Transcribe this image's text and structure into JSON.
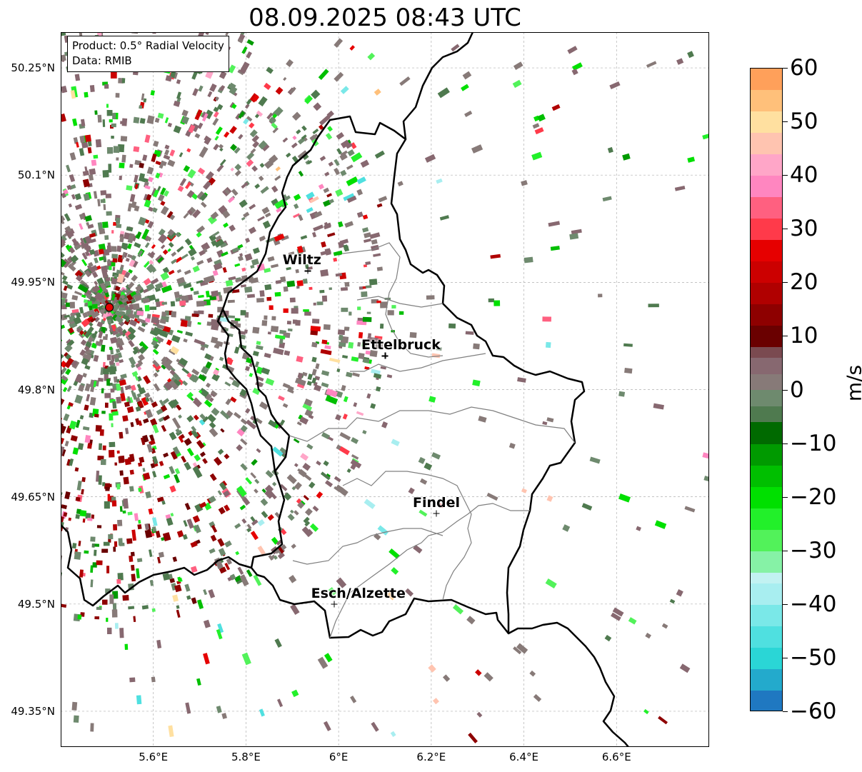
{
  "title": "08.09.2025 08:43 UTC",
  "info": {
    "product": "Product: 0.5° Radial Velocity",
    "data": "Data: RMIB"
  },
  "axes": {
    "lat_labels": [
      "50.25°N",
      "50.1°N",
      "49.95°N",
      "49.8°N",
      "49.65°N",
      "49.5°N",
      "49.35°N"
    ],
    "lat_values": [
      50.25,
      50.1,
      49.95,
      49.8,
      49.65,
      49.5,
      49.35
    ],
    "lon_labels": [
      "5.6°E",
      "5.8°E",
      "6°E",
      "6.2°E",
      "6.4°E",
      "6.6°E"
    ],
    "lon_values": [
      5.6,
      5.8,
      6.0,
      6.2,
      6.4,
      6.6
    ],
    "lat_range": [
      49.3,
      50.3
    ],
    "lon_range": [
      5.4,
      6.8
    ]
  },
  "cities": [
    {
      "name": "Wiltz",
      "lat": 49.966,
      "lon": 5.933
    },
    {
      "name": "Ettelbruck",
      "lat": 49.847,
      "lon": 6.1
    },
    {
      "name": "Findel",
      "lat": 49.627,
      "lon": 6.211
    },
    {
      "name": "Esch/Alzette",
      "lat": 49.5,
      "lon": 5.99
    }
  ],
  "radar_site": {
    "lat": 49.915,
    "lon": 5.505,
    "color": "#e60000"
  },
  "colorbar": {
    "unit": "m/s",
    "range": [
      -60,
      60
    ],
    "tick_labels": [
      "60",
      "50",
      "40",
      "30",
      "20",
      "10",
      "0",
      "−10",
      "−20",
      "−30",
      "−40",
      "−50",
      "−60"
    ],
    "tick_values": [
      60,
      50,
      40,
      30,
      20,
      10,
      0,
      -10,
      -20,
      -30,
      -40,
      -50,
      -60
    ],
    "stops": [
      {
        "from": -60,
        "to": -56,
        "color": "#1f78c1"
      },
      {
        "from": -56,
        "to": -52,
        "color": "#23aacc"
      },
      {
        "from": -52,
        "to": -48,
        "color": "#2ad6d6"
      },
      {
        "from": -48,
        "to": -44,
        "color": "#4fe0e0"
      },
      {
        "from": -44,
        "to": -40,
        "color": "#7ae8e8"
      },
      {
        "from": -40,
        "to": -36,
        "color": "#a8eef0"
      },
      {
        "from": -36,
        "to": -34,
        "color": "#c2f2f2"
      },
      {
        "from": -34,
        "to": -30,
        "color": "#86f2a6"
      },
      {
        "from": -30,
        "to": -26,
        "color": "#52f25a"
      },
      {
        "from": -26,
        "to": -22,
        "color": "#22f02a"
      },
      {
        "from": -22,
        "to": -18,
        "color": "#00e000"
      },
      {
        "from": -18,
        "to": -14,
        "color": "#00bf00"
      },
      {
        "from": -14,
        "to": -10,
        "color": "#009a00"
      },
      {
        "from": -10,
        "to": -6,
        "color": "#006a00"
      },
      {
        "from": -6,
        "to": -3,
        "color": "#4f7a4f"
      },
      {
        "from": -3,
        "to": 0,
        "color": "#6e8a6e"
      },
      {
        "from": 0,
        "to": 3,
        "color": "#877a78"
      },
      {
        "from": 3,
        "to": 6,
        "color": "#876870"
      },
      {
        "from": 6,
        "to": 8,
        "color": "#7a4a50"
      },
      {
        "from": 8,
        "to": 12,
        "color": "#6a0000"
      },
      {
        "from": 12,
        "to": 16,
        "color": "#8e0000"
      },
      {
        "from": 16,
        "to": 20,
        "color": "#b00000"
      },
      {
        "from": 20,
        "to": 24,
        "color": "#cc0000"
      },
      {
        "from": 24,
        "to": 28,
        "color": "#e60000"
      },
      {
        "from": 28,
        "to": 32,
        "color": "#ff3a4a"
      },
      {
        "from": 32,
        "to": 36,
        "color": "#ff6080"
      },
      {
        "from": 36,
        "to": 40,
        "color": "#ff86c0"
      },
      {
        "from": 40,
        "to": 44,
        "color": "#ffa6c8"
      },
      {
        "from": 44,
        "to": 48,
        "color": "#ffc4b0"
      },
      {
        "from": 48,
        "to": 52,
        "color": "#ffe0a0"
      },
      {
        "from": 52,
        "to": 56,
        "color": "#ffc07a"
      },
      {
        "from": 56,
        "to": 60,
        "color": "#ffa05a"
      }
    ]
  },
  "colors": {
    "gridline": "#b0b0b0",
    "border": "#000000",
    "canton": "#808080"
  }
}
